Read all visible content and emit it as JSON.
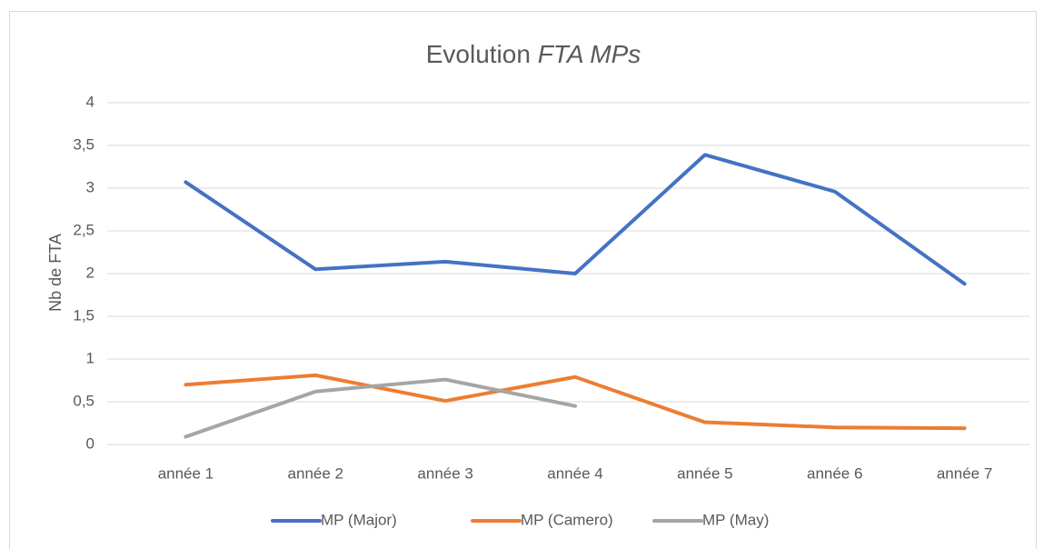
{
  "chart_data": {
    "type": "line",
    "title_parts": [
      "Evolution",
      "FTA MPs"
    ],
    "ylabel": "Nb de FTA",
    "categories": [
      "année 1",
      "année 2",
      "année 3",
      "année 4",
      "année 5",
      "année 6",
      "année 7"
    ],
    "series": [
      {
        "name": "MP (Major)",
        "color": "#4472c4",
        "values": [
          3.07,
          2.05,
          2.14,
          2.0,
          3.39,
          2.96,
          1.88
        ]
      },
      {
        "name": "MP (Camero)",
        "color": "#ed7d31",
        "values": [
          0.7,
          0.81,
          0.51,
          0.79,
          0.26,
          0.2,
          0.19
        ]
      },
      {
        "name": "MP (May)",
        "color": "#a5a5a5",
        "values": [
          0.09,
          0.62,
          0.76,
          0.45,
          null,
          null,
          null
        ]
      }
    ],
    "ylim": [
      0,
      4
    ],
    "yticks": [
      0,
      {
        "value": 0.5,
        "label": "0,5"
      },
      1,
      {
        "value": 1.5,
        "label": "1,5"
      },
      2,
      {
        "value": 2.5,
        "label": "2,5"
      },
      3,
      {
        "value": 3.5,
        "label": "3,5"
      },
      4
    ],
    "grid": true,
    "legend": "bottom"
  }
}
